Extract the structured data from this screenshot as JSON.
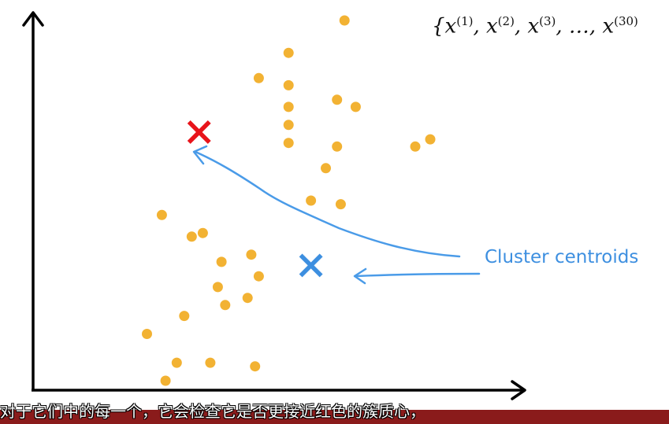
{
  "set_notation": {
    "open": "{",
    "terms": [
      {
        "base": "x",
        "sup": "(1)"
      },
      {
        "base": "x",
        "sup": "(2)"
      },
      {
        "base": "x",
        "sup": "(3)"
      },
      {
        "base": "x",
        "sup": "(30)"
      }
    ],
    "separator": ", ",
    "ellipsis": "…"
  },
  "legend": {
    "label": "Cluster centroids",
    "color": "#3d8fe0"
  },
  "subtitle": {
    "text": "对于它们中的每一个，它会检查它是否更接近红色的簇质心，"
  },
  "chart_data": {
    "type": "scatter",
    "title": "",
    "xlabel": "",
    "ylabel": "",
    "grid": false,
    "xlim": [
      0,
      100
    ],
    "ylim": [
      0,
      100
    ],
    "series": [
      {
        "color": "#f2b233",
        "points": [
          [
            66,
            100
          ],
          [
            51,
            91
          ],
          [
            43,
            84
          ],
          [
            51,
            82
          ],
          [
            51,
            76
          ],
          [
            64,
            78
          ],
          [
            69,
            76
          ],
          [
            51,
            71
          ],
          [
            51,
            66
          ],
          [
            85,
            65
          ],
          [
            89,
            67
          ],
          [
            64,
            65
          ],
          [
            61,
            59
          ],
          [
            57,
            50
          ],
          [
            65,
            49
          ],
          [
            17,
            46
          ],
          [
            25,
            40
          ],
          [
            28,
            41
          ],
          [
            33,
            33
          ],
          [
            41,
            35
          ],
          [
            43,
            29
          ],
          [
            32,
            26
          ],
          [
            40,
            23
          ],
          [
            34,
            21
          ],
          [
            23,
            18
          ],
          [
            13,
            13
          ],
          [
            21,
            5
          ],
          [
            30,
            5
          ],
          [
            42,
            4
          ],
          [
            18,
            0
          ]
        ]
      }
    ],
    "markers": [
      {
        "kind": "centroid",
        "color": "#e8141b",
        "x": 27,
        "y": 69
      },
      {
        "kind": "centroid",
        "color": "#3d8fe0",
        "x": 57,
        "y": 32
      }
    ]
  }
}
